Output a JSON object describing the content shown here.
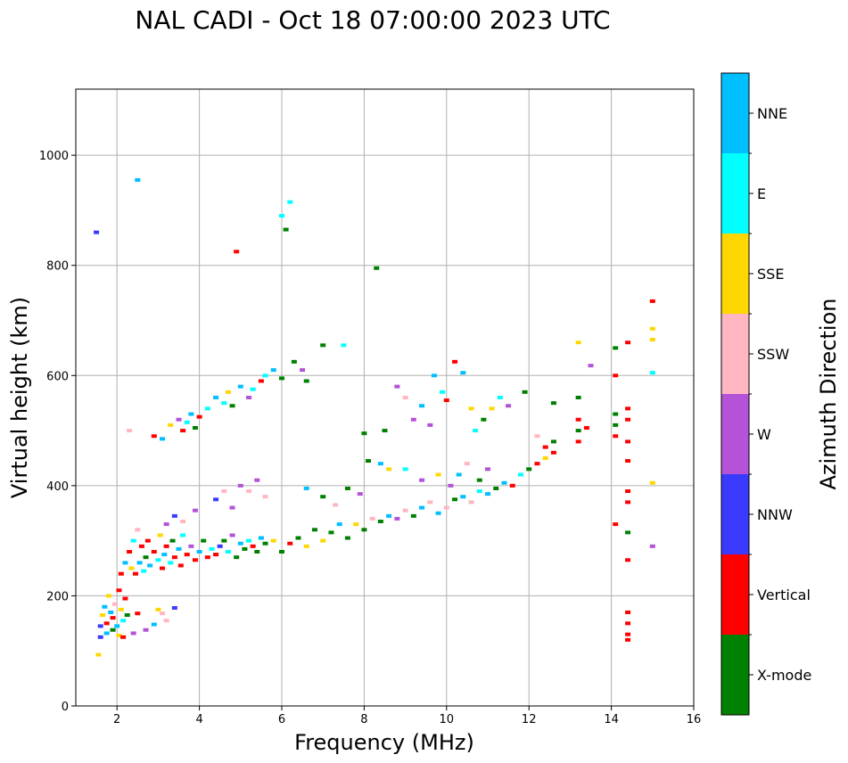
{
  "chart_data": {
    "type": "scatter",
    "title": "NAL CADI - Oct 18 07:00:00 2023 UTC",
    "xlabel": "Frequency (MHz)",
    "ylabel": "Virtual height (km)",
    "xlim": [
      1,
      16
    ],
    "ylim": [
      0,
      1120
    ],
    "xticks": [
      2,
      4,
      6,
      8,
      10,
      12,
      14,
      16
    ],
    "yticks": [
      0,
      200,
      400,
      600,
      800,
      1000
    ],
    "grid": true,
    "colorbar": {
      "label": "Azimuth Direction",
      "categories": [
        {
          "name": "X-mode",
          "color": "#008000"
        },
        {
          "name": "Vertical",
          "color": "#ff0000"
        },
        {
          "name": "NNW",
          "color": "#3a3aff"
        },
        {
          "name": "W",
          "color": "#b452d8"
        },
        {
          "name": "SSW",
          "color": "#ffb6c1"
        },
        {
          "name": "SSE",
          "color": "#ffd700"
        },
        {
          "name": "E",
          "color": "#00ffff"
        },
        {
          "name": "NNE",
          "color": "#00bfff"
        }
      ]
    },
    "points": [
      [
        1.5,
        860,
        "NNW"
      ],
      [
        1.55,
        93,
        "SSE"
      ],
      [
        1.6,
        145,
        "NNW"
      ],
      [
        1.65,
        165,
        "SSE"
      ],
      [
        1.7,
        180,
        "NNE"
      ],
      [
        1.75,
        150,
        "Vertical"
      ],
      [
        1.8,
        200,
        "SSE"
      ],
      [
        1.85,
        170,
        "NNE"
      ],
      [
        1.9,
        160,
        "Vertical"
      ],
      [
        1.95,
        185,
        "SSW"
      ],
      [
        2.0,
        145,
        "NNE"
      ],
      [
        2.05,
        210,
        "Vertical"
      ],
      [
        2.1,
        175,
        "SSE"
      ],
      [
        2.15,
        155,
        "E"
      ],
      [
        2.2,
        195,
        "Vertical"
      ],
      [
        2.25,
        165,
        "X-mode"
      ],
      [
        2.1,
        240,
        "Vertical"
      ],
      [
        2.2,
        260,
        "NNE"
      ],
      [
        2.3,
        280,
        "Vertical"
      ],
      [
        2.35,
        250,
        "SSE"
      ],
      [
        2.4,
        300,
        "E"
      ],
      [
        2.45,
        240,
        "Vertical"
      ],
      [
        2.5,
        320,
        "SSW"
      ],
      [
        2.55,
        260,
        "NNE"
      ],
      [
        2.6,
        290,
        "Vertical"
      ],
      [
        2.65,
        245,
        "E"
      ],
      [
        2.7,
        270,
        "X-mode"
      ],
      [
        2.75,
        300,
        "Vertical"
      ],
      [
        2.8,
        255,
        "NNE"
      ],
      [
        2.9,
        280,
        "Vertical"
      ],
      [
        3.0,
        265,
        "E"
      ],
      [
        3.05,
        310,
        "SSE"
      ],
      [
        3.1,
        250,
        "Vertical"
      ],
      [
        3.15,
        275,
        "NNE"
      ],
      [
        3.2,
        290,
        "Vertical"
      ],
      [
        3.3,
        260,
        "E"
      ],
      [
        3.35,
        300,
        "X-mode"
      ],
      [
        3.4,
        270,
        "Vertical"
      ],
      [
        3.5,
        285,
        "NNE"
      ],
      [
        3.55,
        255,
        "Vertical"
      ],
      [
        3.6,
        310,
        "E"
      ],
      [
        3.7,
        275,
        "Vertical"
      ],
      [
        3.8,
        290,
        "W"
      ],
      [
        3.9,
        265,
        "Vertical"
      ],
      [
        4.0,
        280,
        "NNE"
      ],
      [
        4.1,
        300,
        "X-mode"
      ],
      [
        4.2,
        270,
        "Vertical"
      ],
      [
        4.3,
        285,
        "E"
      ],
      [
        4.4,
        275,
        "Vertical"
      ],
      [
        4.5,
        290,
        "NNW"
      ],
      [
        4.6,
        300,
        "X-mode"
      ],
      [
        4.7,
        280,
        "E"
      ],
      [
        4.8,
        310,
        "W"
      ],
      [
        4.9,
        270,
        "X-mode"
      ],
      [
        5.0,
        295,
        "NNE"
      ],
      [
        5.1,
        285,
        "X-mode"
      ],
      [
        5.2,
        300,
        "E"
      ],
      [
        5.3,
        290,
        "Vertical"
      ],
      [
        5.4,
        280,
        "X-mode"
      ],
      [
        5.5,
        305,
        "NNE"
      ],
      [
        5.6,
        295,
        "X-mode"
      ],
      [
        5.8,
        300,
        "SSE"
      ],
      [
        6.0,
        280,
        "X-mode"
      ],
      [
        6.2,
        295,
        "Vertical"
      ],
      [
        6.4,
        305,
        "X-mode"
      ],
      [
        6.6,
        290,
        "SSE"
      ],
      [
        6.8,
        320,
        "X-mode"
      ],
      [
        7.0,
        300,
        "SSE"
      ],
      [
        7.2,
        315,
        "X-mode"
      ],
      [
        7.4,
        330,
        "NNE"
      ],
      [
        7.6,
        305,
        "X-mode"
      ],
      [
        7.8,
        330,
        "SSE"
      ],
      [
        8.0,
        320,
        "X-mode"
      ],
      [
        8.2,
        340,
        "SSW"
      ],
      [
        8.4,
        335,
        "X-mode"
      ],
      [
        8.6,
        345,
        "NNE"
      ],
      [
        8.8,
        340,
        "W"
      ],
      [
        9.0,
        355,
        "SSW"
      ],
      [
        9.2,
        345,
        "X-mode"
      ],
      [
        9.4,
        360,
        "NNE"
      ],
      [
        9.6,
        370,
        "SSW"
      ],
      [
        9.8,
        350,
        "NNE"
      ],
      [
        10.0,
        360,
        "SSW"
      ],
      [
        10.2,
        375,
        "X-mode"
      ],
      [
        10.4,
        380,
        "NNE"
      ],
      [
        10.6,
        370,
        "SSW"
      ],
      [
        10.8,
        390,
        "E"
      ],
      [
        11.0,
        385,
        "NNE"
      ],
      [
        11.2,
        395,
        "X-mode"
      ],
      [
        11.4,
        405,
        "NNE"
      ],
      [
        11.6,
        400,
        "Vertical"
      ],
      [
        11.8,
        420,
        "E"
      ],
      [
        12.0,
        430,
        "X-mode"
      ],
      [
        12.2,
        440,
        "Vertical"
      ],
      [
        12.4,
        450,
        "SSE"
      ],
      [
        12.6,
        460,
        "Vertical"
      ],
      [
        12.6,
        480,
        "X-mode"
      ],
      [
        13.2,
        480,
        "Vertical"
      ],
      [
        13.2,
        500,
        "X-mode"
      ],
      [
        13.2,
        520,
        "Vertical"
      ],
      [
        13.4,
        505,
        "Vertical"
      ],
      [
        13.2,
        560,
        "X-mode"
      ],
      [
        13.2,
        660,
        "SSE"
      ],
      [
        13.5,
        618,
        "W"
      ],
      [
        14.1,
        650,
        "X-mode"
      ],
      [
        14.1,
        600,
        "Vertical"
      ],
      [
        14.1,
        530,
        "X-mode"
      ],
      [
        14.1,
        490,
        "Vertical"
      ],
      [
        14.1,
        510,
        "X-mode"
      ],
      [
        14.1,
        330,
        "Vertical"
      ],
      [
        14.4,
        660,
        "Vertical"
      ],
      [
        14.4,
        540,
        "Vertical"
      ],
      [
        14.4,
        520,
        "Vertical"
      ],
      [
        14.4,
        480,
        "Vertical"
      ],
      [
        14.4,
        445,
        "Vertical"
      ],
      [
        14.4,
        390,
        "Vertical"
      ],
      [
        14.4,
        370,
        "Vertical"
      ],
      [
        14.4,
        315,
        "X-mode"
      ],
      [
        14.4,
        265,
        "Vertical"
      ],
      [
        14.4,
        170,
        "Vertical"
      ],
      [
        14.4,
        150,
        "Vertical"
      ],
      [
        14.4,
        130,
        "Vertical"
      ],
      [
        14.4,
        120,
        "Vertical"
      ],
      [
        15.0,
        735,
        "Vertical"
      ],
      [
        15.0,
        685,
        "SSE"
      ],
      [
        15.0,
        665,
        "SSE"
      ],
      [
        15.0,
        605,
        "E"
      ],
      [
        15.0,
        405,
        "SSE"
      ],
      [
        15.0,
        290,
        "W"
      ],
      [
        2.3,
        500,
        "SSW"
      ],
      [
        2.5,
        955,
        "NNE"
      ],
      [
        2.9,
        490,
        "Vertical"
      ],
      [
        3.1,
        485,
        "NNE"
      ],
      [
        3.3,
        510,
        "SSE"
      ],
      [
        3.5,
        520,
        "W"
      ],
      [
        3.6,
        500,
        "Vertical"
      ],
      [
        3.7,
        515,
        "E"
      ],
      [
        3.8,
        530,
        "NNE"
      ],
      [
        3.9,
        505,
        "X-mode"
      ],
      [
        4.0,
        525,
        "Vertical"
      ],
      [
        4.2,
        540,
        "E"
      ],
      [
        4.4,
        560,
        "NNE"
      ],
      [
        4.6,
        550,
        "E"
      ],
      [
        4.7,
        570,
        "SSE"
      ],
      [
        4.8,
        545,
        "X-mode"
      ],
      [
        5.0,
        580,
        "NNE"
      ],
      [
        5.2,
        560,
        "W"
      ],
      [
        5.3,
        575,
        "E"
      ],
      [
        5.5,
        590,
        "Vertical"
      ],
      [
        5.6,
        600,
        "E"
      ],
      [
        5.8,
        610,
        "NNE"
      ],
      [
        6.0,
        595,
        "X-mode"
      ],
      [
        6.3,
        625,
        "X-mode"
      ],
      [
        6.5,
        610,
        "W"
      ],
      [
        6.6,
        590,
        "X-mode"
      ],
      [
        7.0,
        655,
        "X-mode"
      ],
      [
        7.5,
        655,
        "E"
      ],
      [
        4.9,
        825,
        "Vertical"
      ],
      [
        6.0,
        890,
        "E"
      ],
      [
        6.1,
        865,
        "X-mode"
      ],
      [
        6.2,
        915,
        "E"
      ],
      [
        8.3,
        795,
        "X-mode"
      ],
      [
        8.0,
        495,
        "X-mode"
      ],
      [
        8.5,
        500,
        "X-mode"
      ],
      [
        8.8,
        580,
        "W"
      ],
      [
        9.0,
        560,
        "SSW"
      ],
      [
        9.2,
        520,
        "W"
      ],
      [
        9.4,
        545,
        "NNE"
      ],
      [
        9.6,
        510,
        "W"
      ],
      [
        9.7,
        600,
        "NNE"
      ],
      [
        9.9,
        570,
        "E"
      ],
      [
        10.0,
        555,
        "Vertical"
      ],
      [
        10.2,
        625,
        "Vertical"
      ],
      [
        10.4,
        605,
        "NNE"
      ],
      [
        10.6,
        540,
        "SSE"
      ],
      [
        10.7,
        500,
        "E"
      ],
      [
        10.9,
        520,
        "X-mode"
      ],
      [
        11.1,
        540,
        "SSE"
      ],
      [
        11.3,
        560,
        "E"
      ],
      [
        11.5,
        545,
        "W"
      ],
      [
        11.9,
        570,
        "X-mode"
      ],
      [
        12.2,
        490,
        "SSW"
      ],
      [
        12.4,
        470,
        "Vertical"
      ],
      [
        12.6,
        550,
        "X-mode"
      ],
      [
        9.0,
        430,
        "E"
      ],
      [
        9.4,
        410,
        "W"
      ],
      [
        9.8,
        420,
        "SSE"
      ],
      [
        10.1,
        400,
        "W"
      ],
      [
        10.3,
        420,
        "NNE"
      ],
      [
        10.5,
        440,
        "SSW"
      ],
      [
        10.8,
        410,
        "X-mode"
      ],
      [
        11.0,
        430,
        "W"
      ],
      [
        5.0,
        400,
        "W"
      ],
      [
        5.2,
        390,
        "SSW"
      ],
      [
        5.4,
        410,
        "W"
      ],
      [
        5.6,
        380,
        "SSW"
      ],
      [
        4.8,
        360,
        "W"
      ],
      [
        4.6,
        390,
        "SSW"
      ],
      [
        4.4,
        375,
        "NNW"
      ],
      [
        3.9,
        355,
        "W"
      ],
      [
        3.6,
        335,
        "SSW"
      ],
      [
        3.4,
        345,
        "NNW"
      ],
      [
        3.2,
        330,
        "W"
      ],
      [
        3.0,
        175,
        "SSE"
      ],
      [
        3.2,
        155,
        "SSW"
      ],
      [
        3.4,
        178,
        "NNW"
      ],
      [
        2.5,
        168,
        "Vertical"
      ],
      [
        2.7,
        138,
        "W"
      ],
      [
        2.9,
        148,
        "NNE"
      ],
      [
        3.1,
        168,
        "SSW"
      ],
      [
        6.6,
        395,
        "NNE"
      ],
      [
        7.0,
        380,
        "X-mode"
      ],
      [
        7.3,
        365,
        "SSW"
      ],
      [
        7.6,
        395,
        "X-mode"
      ],
      [
        7.9,
        385,
        "W"
      ],
      [
        8.1,
        445,
        "X-mode"
      ],
      [
        8.4,
        440,
        "NNE"
      ],
      [
        8.6,
        430,
        "SSE"
      ],
      [
        1.6,
        125,
        "NNW"
      ],
      [
        1.75,
        132,
        "NNE"
      ],
      [
        1.9,
        138,
        "X-mode"
      ],
      [
        2.05,
        128,
        "SSE"
      ],
      [
        2.15,
        125,
        "Vertical"
      ],
      [
        2.4,
        132,
        "W"
      ]
    ]
  }
}
